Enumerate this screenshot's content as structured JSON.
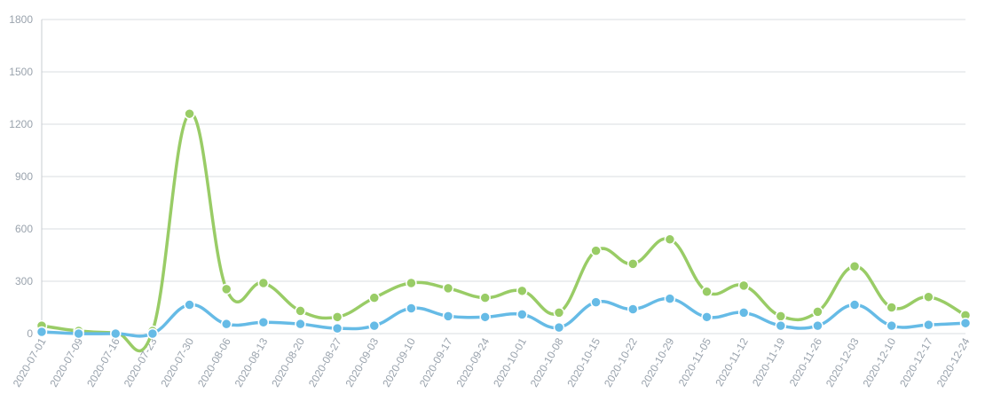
{
  "chart_data": {
    "type": "line",
    "title": "",
    "xlabel": "",
    "ylabel": "",
    "ylim": [
      0,
      1800
    ],
    "yticks": [
      0,
      300,
      600,
      900,
      1200,
      1500,
      1800
    ],
    "grid": true,
    "legend": "none",
    "categories": [
      "2020-07-01",
      "2020-07-09",
      "2020-07-16",
      "2020-07-23",
      "2020-07-30",
      "2020-08-06",
      "2020-08-13",
      "2020-08-20",
      "2020-08-27",
      "2020-09-03",
      "2020-09-10",
      "2020-09-17",
      "2020-09-24",
      "2020-10-01",
      "2020-10-08",
      "2020-10-15",
      "2020-10-22",
      "2020-10-29",
      "2020-11-05",
      "2020-11-12",
      "2020-11-19",
      "2020-11-26",
      "2020-12-03",
      "2020-12-10",
      "2020-12-17",
      "2020-12-24"
    ],
    "series": [
      {
        "color": "#99cc66",
        "values": [
          45,
          15,
          5,
          15,
          1260,
          255,
          290,
          130,
          95,
          205,
          290,
          260,
          205,
          245,
          120,
          475,
          400,
          540,
          240,
          275,
          100,
          125,
          385,
          150,
          210,
          105
        ]
      },
      {
        "color": "#66bbe6",
        "values": [
          10,
          0,
          0,
          0,
          165,
          55,
          65,
          55,
          30,
          45,
          145,
          100,
          95,
          110,
          35,
          180,
          140,
          200,
          95,
          120,
          45,
          45,
          165,
          45,
          50,
          60
        ]
      }
    ]
  }
}
